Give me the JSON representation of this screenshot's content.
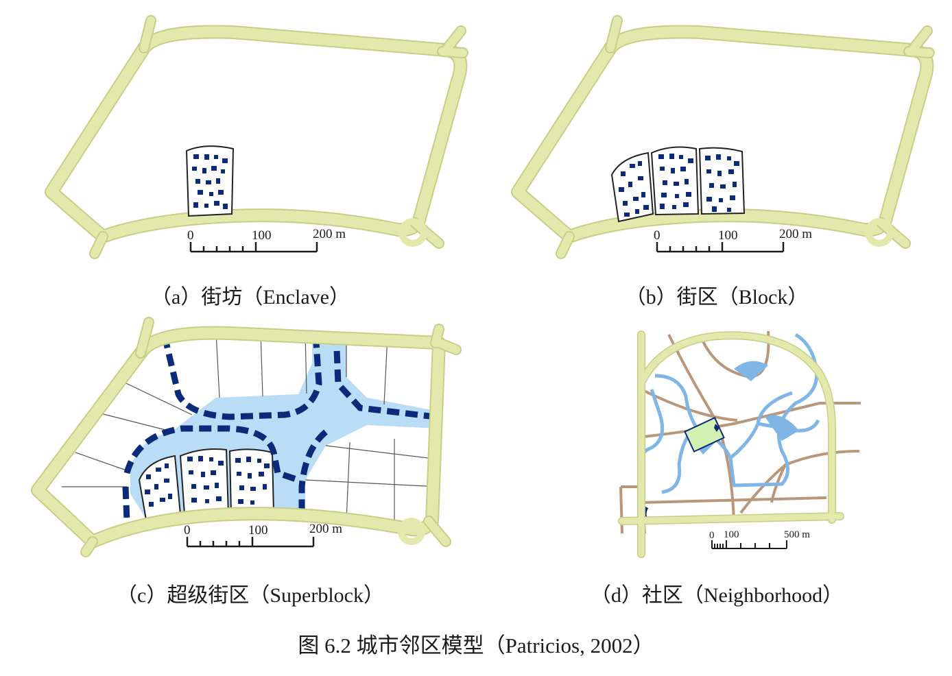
{
  "colors": {
    "road": "#e3e8ad",
    "road_edge": "#c7cf86",
    "building": "#0b2a7a",
    "water": "#b9dcf7",
    "river": "#7fb6e6",
    "street": "#b9977a",
    "green": "#d2f0b2"
  },
  "panels": [
    {
      "id": "a",
      "caption": "（a）街坊（Enclave）",
      "scale": {
        "labels": [
          "0",
          "100",
          "200 m"
        ]
      }
    },
    {
      "id": "b",
      "caption": "（b）街区（Block）",
      "scale": {
        "labels": [
          "0",
          "100",
          "200 m"
        ]
      }
    },
    {
      "id": "c",
      "caption": "（c）超级街区（Superblock）",
      "scale": {
        "labels": [
          "0",
          "100",
          "200 m"
        ]
      }
    },
    {
      "id": "d",
      "caption": "（d）社区（Neighborhood）",
      "scale": {
        "labels": [
          "0",
          "100",
          "500 m"
        ]
      }
    }
  ],
  "figure_title": "图 6.2 城市邻区模型（Patricios, 2002）"
}
